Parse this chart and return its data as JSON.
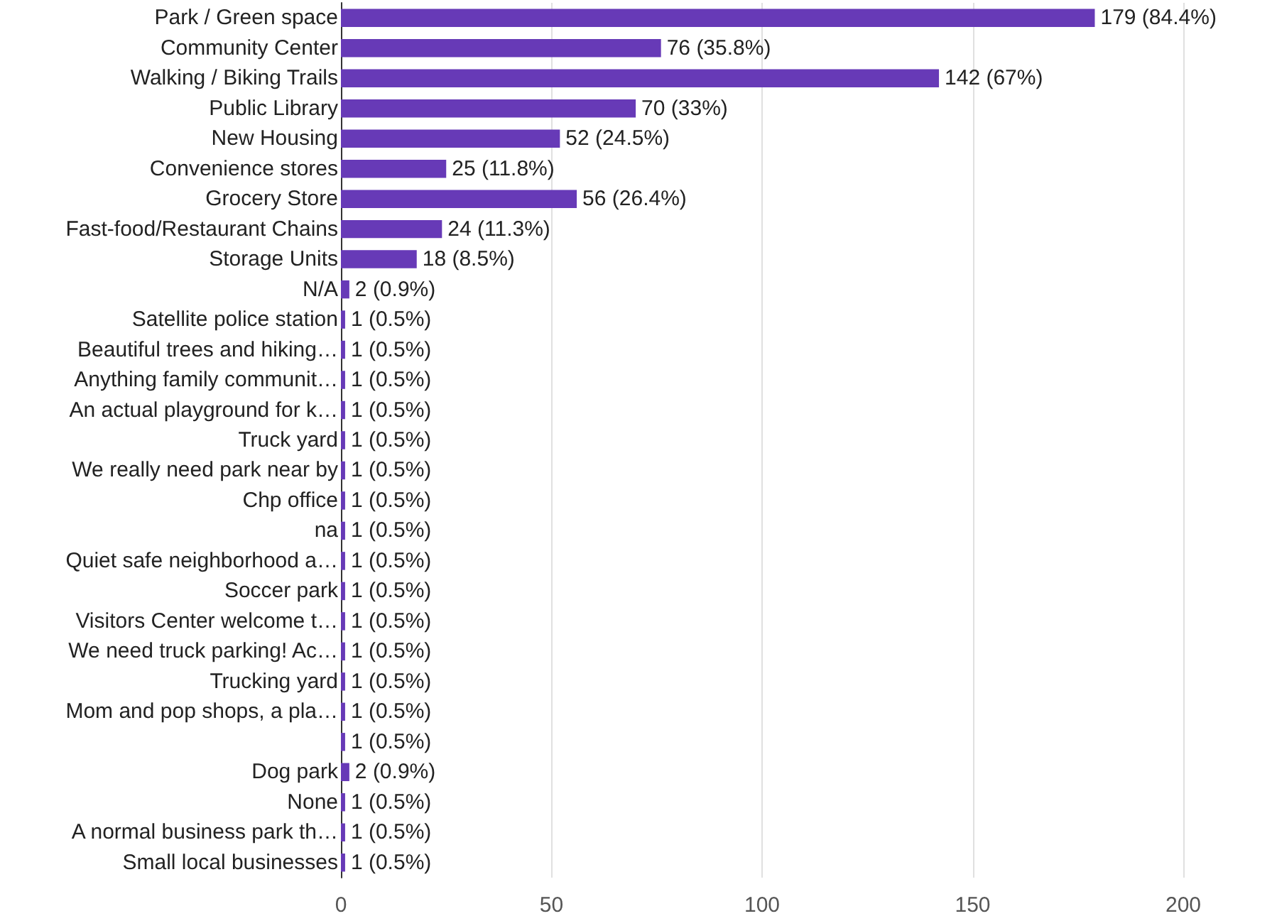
{
  "chart_data": {
    "type": "bar",
    "orientation": "horizontal",
    "categories": [
      "Park / Green space",
      "Community Center",
      "Walking / Biking Trails",
      "Public Library",
      "New Housing",
      "Convenience stores",
      "Grocery Store",
      "Fast-food/Restaurant Chains",
      "Storage Units",
      "N/A",
      "Satellite police station",
      "Beautiful trees and hiking…",
      "Anything family communit…",
      "An actual playground for k…",
      "Truck yard",
      "We really need park near by",
      "Chp office",
      "na",
      "Quiet safe neighborhood a…",
      "Soccer park",
      "Visitors Center welcome t…",
      "We need truck parking! Ac…",
      "Trucking yard",
      "Mom and pop shops, a pla…",
      null,
      "Dog park",
      "None",
      "A normal business park th…",
      "Small local businesses"
    ],
    "values": [
      179,
      76,
      142,
      70,
      52,
      25,
      56,
      24,
      18,
      2,
      1,
      1,
      1,
      1,
      1,
      1,
      1,
      1,
      1,
      1,
      1,
      1,
      1,
      1,
      1,
      2,
      1,
      1,
      1
    ],
    "value_labels": [
      "179 (84.4%)",
      "76 (35.8%)",
      "142 (67%)",
      "70 (33%)",
      "52 (24.5%)",
      "25 (11.8%)",
      "56 (26.4%)",
      "24 (11.3%)",
      "18 (8.5%)",
      "2 (0.9%)",
      "1 (0.5%)",
      "1 (0.5%)",
      "1 (0.5%)",
      "1 (0.5%)",
      "1 (0.5%)",
      "1 (0.5%)",
      "1 (0.5%)",
      "1 (0.5%)",
      "1 (0.5%)",
      "1 (0.5%)",
      "1 (0.5%)",
      "1 (0.5%)",
      "1 (0.5%)",
      "1 (0.5%)",
      "1 (0.5%)",
      "2 (0.9%)",
      "1 (0.5%)",
      "1 (0.5%)",
      "1 (0.5%)"
    ],
    "color": "#673ab7",
    "xlim": [
      0,
      200
    ],
    "xticks": [
      0,
      50,
      100,
      150,
      200
    ],
    "grid": "x"
  }
}
